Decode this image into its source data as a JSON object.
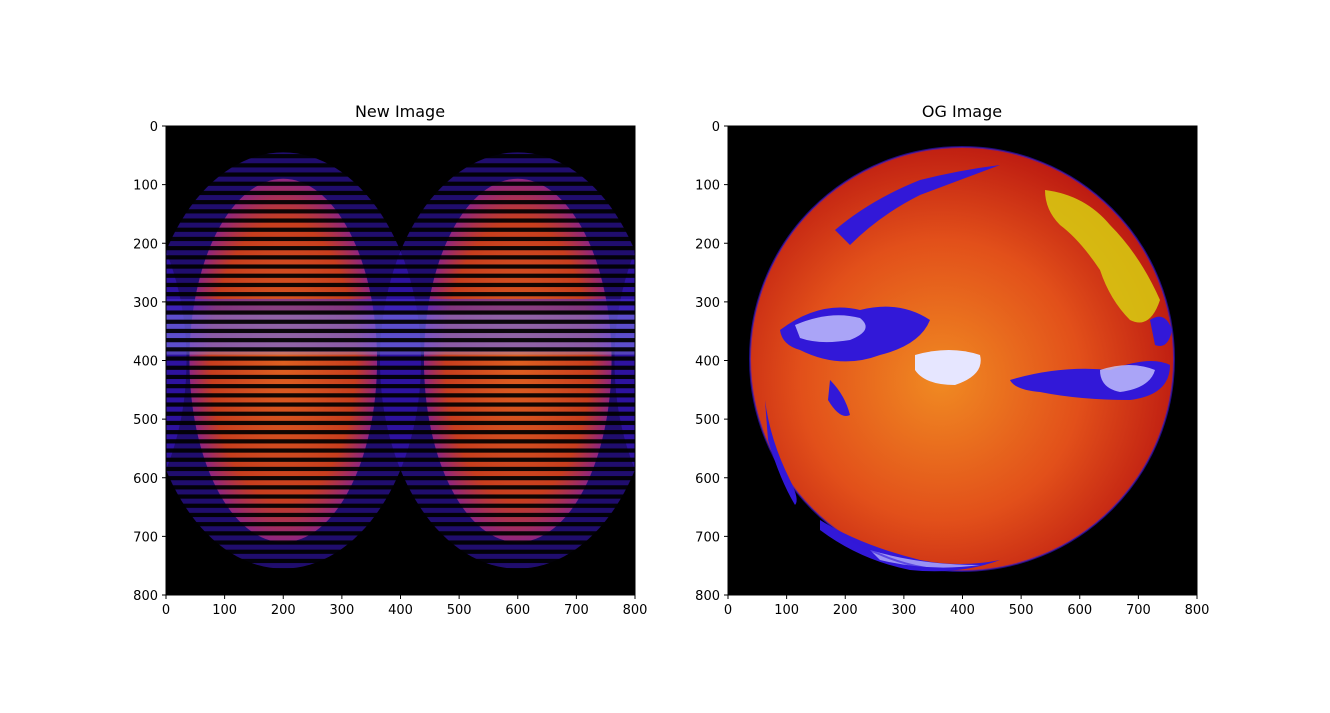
{
  "chart_data": [
    {
      "type": "image",
      "title": "New Image",
      "xlim": [
        0,
        800
      ],
      "ylim": [
        800,
        0
      ],
      "x_ticks": [
        0,
        100,
        200,
        300,
        400,
        500,
        600,
        700,
        800
      ],
      "y_ticks": [
        0,
        100,
        200,
        300,
        400,
        500,
        600,
        700,
        800
      ],
      "content": "two adjacent disk projections centered near x=200 and x=600 (radius ~380) with horizontal black scan-line bands, warm red/orange fill with blue band near y=300-400"
    },
    {
      "type": "image",
      "title": "OG Image",
      "xlim": [
        0,
        800
      ],
      "ylim": [
        800,
        0
      ],
      "x_ticks": [
        0,
        100,
        200,
        300,
        400,
        500,
        600,
        700,
        800
      ],
      "y_ticks": [
        0,
        100,
        200,
        300,
        400,
        500,
        600,
        700,
        800
      ],
      "content": "single earth disk centered at (400, 400) radius ~360, red/orange fill with blue/white cloud bands near y=330-430"
    }
  ],
  "colors": {
    "background": "#000000",
    "warm_dark": "#c41a12",
    "warm_mid": "#e2501a",
    "warm_light": "#f08a22",
    "cloud_blue": "#3218d8",
    "cloud_white": "#c8c8ff",
    "highlight_yellow": "#d8d010"
  }
}
